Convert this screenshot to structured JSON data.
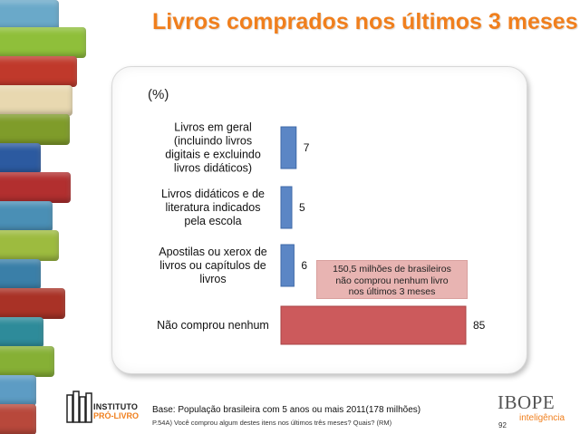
{
  "title": "Livros comprados nos últimos 3 meses",
  "chart_data": {
    "type": "bar",
    "orientation": "horizontal",
    "unit_label": "(%)",
    "categories": [
      "Livros em geral (incluindo livros digitais e excluindo livros didáticos)",
      "Livros didáticos e de literatura indicados pela escola",
      "Apostilas ou xerox de livros ou capítulos de livros",
      "Não comprou nenhum"
    ],
    "category_lines": [
      [
        "Livros em geral",
        "(incluindo livros",
        "digitais e excluindo",
        "livros didáticos)"
      ],
      [
        "Livros didáticos e de",
        "literatura indicados",
        "pela escola"
      ],
      [
        "Apostilas ou xerox de",
        "livros ou capítulos de",
        "livros"
      ],
      [
        "Não comprou nenhum"
      ]
    ],
    "values": [
      7,
      5,
      6,
      85
    ],
    "colors": [
      "#5b86c5",
      "#5b86c5",
      "#5b86c5",
      "#cc5a5c"
    ],
    "xlim": [
      0,
      85
    ],
    "grid": false,
    "legend": "none"
  },
  "callout": {
    "lines": [
      "150,5 milhões de brasileiros",
      "não comprou nenhum livro",
      "nos últimos 3 meses"
    ]
  },
  "footer": {
    "logo_line1": "INSTITUTO",
    "logo_line2": "PRÓ-LIVRO",
    "base": "Base: População brasileira com 5 anos ou mais 2011(178 milhões)",
    "question": "P.54A) Você comprou algum destes itens nos últimos três meses? Quais? (RM)",
    "brand": "IBOPE",
    "brand_sub": "inteligência",
    "page_number": "92"
  },
  "colors": {
    "title": "#f07f1d",
    "bar_blue": "#5b86c5",
    "bar_red": "#cc5a5c",
    "callout_bg": "#e8b4b2"
  }
}
